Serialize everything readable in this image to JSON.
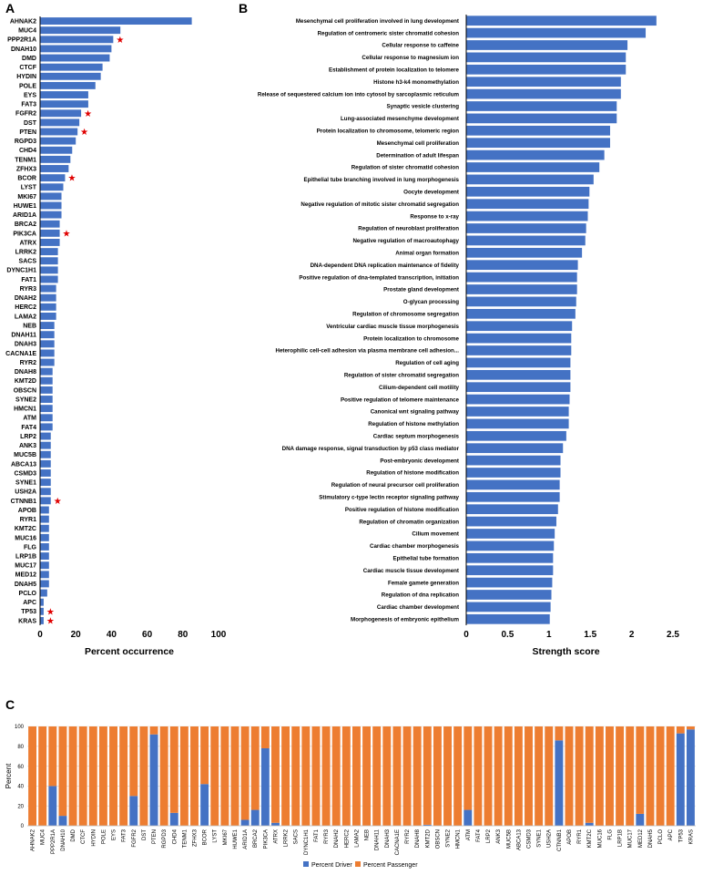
{
  "colors": {
    "blue": "#4472C4",
    "orange": "#ED7D31",
    "star": "#E00000",
    "axis": "#000000",
    "grid": "#D9D9D9"
  },
  "chart_data": [
    {
      "panel": "A",
      "type": "bar",
      "orientation": "horizontal",
      "xlabel": "Percent occurrence",
      "xlim": [
        0,
        100
      ],
      "xticks": [
        0,
        20,
        40,
        60,
        80,
        100
      ],
      "categories": [
        "AHNAK2",
        "MUC4",
        "PPP2R1A",
        "DNAH10",
        "DMD",
        "CTCF",
        "HYDIN",
        "POLE",
        "EYS",
        "FAT3",
        "FGFR2",
        "DST",
        "PTEN",
        "RGPD3",
        "CHD4",
        "TENM1",
        "ZFHX3",
        "BCOR",
        "LYST",
        "MKI67",
        "HUWE1",
        "ARID1A",
        "BRCA2",
        "PIK3CA",
        "ATRX",
        "LRRK2",
        "SACS",
        "DYNC1H1",
        "FAT1",
        "RYR3",
        "DNAH2",
        "HERC2",
        "LAMA2",
        "NEB",
        "DNAH11",
        "DNAH3",
        "CACNA1E",
        "RYR2",
        "DNAH8",
        "KMT2D",
        "OBSCN",
        "SYNE2",
        "HMCN1",
        "ATM",
        "FAT4",
        "LRP2",
        "ANK3",
        "MUC5B",
        "ABCA13",
        "CSMD3",
        "SYNE1",
        "USH2A",
        "CTNNB1",
        "APOB",
        "RYR1",
        "KMT2C",
        "MUC16",
        "FLG",
        "LRP1B",
        "MUC17",
        "MED12",
        "DNAH5",
        "PCLO",
        "APC",
        "TP53",
        "KRAS"
      ],
      "values": [
        85,
        45,
        41,
        40,
        39,
        35,
        34,
        31,
        27,
        27,
        23,
        22,
        21,
        20,
        18,
        17,
        16,
        14,
        13,
        12,
        12,
        12,
        11,
        11,
        11,
        10,
        10,
        10,
        10,
        9,
        9,
        9,
        9,
        8,
        8,
        8,
        8,
        8,
        7,
        7,
        7,
        7,
        7,
        7,
        7,
        6,
        6,
        6,
        6,
        6,
        6,
        6,
        6,
        5,
        5,
        5,
        5,
        5,
        5,
        5,
        5,
        5,
        4,
        2,
        2,
        2
      ],
      "starred": [
        "PPP2R1A",
        "FGFR2",
        "PTEN",
        "BCOR",
        "PIK3CA",
        "CTNNB1",
        "TP53",
        "KRAS"
      ]
    },
    {
      "panel": "B",
      "type": "bar",
      "orientation": "horizontal",
      "xlabel": "Strength score",
      "xlim": [
        0,
        2.5
      ],
      "xticks": [
        "0",
        "0.5",
        "1",
        "1.5",
        "2",
        "2.5"
      ],
      "categories": [
        "Mesenchymal cell proliferation involved in lung development",
        "Regulation of centromeric sister chromatid cohesion",
        "Cellular response to caffeine",
        "Cellular response to magnesium ion",
        "Establishment of protein localization to telomere",
        "Histone h3-k4 monomethylation",
        "Release of sequestered calcium ion into cytosol by sarcoplasmic reticulum",
        "Synaptic vesicle clustering",
        "Lung-associated mesenchyme development",
        "Protein localization to chromosome, telomeric region",
        "Mesenchymal cell proliferation",
        "Determination of adult lifespan",
        "Regulation of sister chromatid cohesion",
        "Epithelial tube branching involved in lung morphogenesis",
        "Oocyte development",
        "Negative regulation of mitotic sister chromatid segregation",
        "Response to x-ray",
        "Regulation of neuroblast proliferation",
        "Negative regulation of macroautophagy",
        "Animal organ formation",
        "DNA-dependent DNA replication maintenance of fidelity",
        "Positive regulation of dna-templated transcription, initiation",
        "Prostate gland development",
        "O-glycan processing",
        "Regulation of chromosome segregation",
        "Ventricular cardiac muscle tissue morphogenesis",
        "Protein localization to chromosome",
        "Heterophilic cell-cell adhesion via plasma membrane cell adhesion...",
        "Regulation of cell aging",
        "Regulation of sister chromatid segregation",
        "Cilium-dependent cell motility",
        "Positive regulation of telomere maintenance",
        "Canonical wnt signaling pathway",
        "Regulation of histone methylation",
        "Cardiac septum morphogenesis",
        "DNA damage response, signal transduction by p53 class mediator",
        "Post-embryonic development",
        "Regulation of histone modification",
        "Regulation of neural precursor cell proliferation",
        "Stimulatory c-type lectin receptor signaling pathway",
        "Positive regulation of histone modification",
        "Regulation of chromatin organization",
        "Cilium movement",
        "Cardiac chamber morphogenesis",
        "Epithelial tube formation",
        "Cardiac muscle tissue development",
        "Female gamete generation",
        "Regulation of dna replication",
        "Cardiac chamber development",
        "Morphogenesis of embryonic epithelium"
      ],
      "values": [
        2.3,
        2.17,
        1.95,
        1.93,
        1.93,
        1.87,
        1.87,
        1.82,
        1.82,
        1.74,
        1.74,
        1.67,
        1.61,
        1.54,
        1.49,
        1.48,
        1.47,
        1.45,
        1.44,
        1.4,
        1.35,
        1.34,
        1.34,
        1.33,
        1.32,
        1.28,
        1.27,
        1.27,
        1.26,
        1.26,
        1.26,
        1.25,
        1.24,
        1.24,
        1.21,
        1.17,
        1.14,
        1.14,
        1.13,
        1.13,
        1.11,
        1.09,
        1.07,
        1.06,
        1.05,
        1.05,
        1.04,
        1.03,
        1.02,
        1.01
      ]
    },
    {
      "panel": "C",
      "type": "bar",
      "stacked": true,
      "ylabel": "Percent",
      "ylim": [
        0,
        100
      ],
      "yticks": [
        0,
        20,
        40,
        60,
        80,
        100
      ],
      "categories": [
        "AHNAK2",
        "MUC4",
        "PPP2R1A",
        "DNAH10",
        "DMD",
        "CTCF",
        "HYDIN",
        "POLE",
        "EYS",
        "FAT3",
        "FGFR2",
        "DST",
        "PTEN",
        "RGPD3",
        "CHD4",
        "TENM1",
        "ZFHX3",
        "BCOR",
        "LYST",
        "MKI67",
        "HUWE1",
        "ARID1A",
        "BRCA2",
        "PIK3CA",
        "ATRX",
        "LRRK2",
        "SACS",
        "DYNC1H1",
        "FAT1",
        "RYR3",
        "DNAH2",
        "HERC2",
        "LAMA2",
        "NEB",
        "DNAH11",
        "DNAH3",
        "CACNA1E",
        "RYR2",
        "DNAH8",
        "KMT2D",
        "OBSCN",
        "SYNE2",
        "HMCN1",
        "ATM",
        "FAT4",
        "LRP2",
        "ANK3",
        "MUC5B",
        "ABCA13",
        "CSMD3",
        "SYNE1",
        "USH2A",
        "CTNNB1",
        "APOB",
        "RYR1",
        "KMT2C",
        "MUC16",
        "FLG",
        "LRP1B",
        "MUC17",
        "MED12",
        "DNAH5",
        "PCLO",
        "APC",
        "TP53",
        "KRAS"
      ],
      "series": [
        {
          "name": "Percent Driver",
          "values": [
            0,
            0,
            40,
            10,
            0,
            0,
            0,
            0,
            0,
            0,
            30,
            0,
            92,
            0,
            13,
            0,
            0,
            42,
            0,
            0,
            0,
            6,
            16,
            78,
            3,
            0,
            0,
            0,
            0,
            0,
            0,
            0,
            0,
            0,
            0,
            0,
            0,
            0,
            0,
            1,
            0,
            0,
            0,
            16,
            0,
            0,
            0,
            0,
            0,
            0,
            0,
            0,
            86,
            0,
            0,
            3,
            0,
            0,
            0,
            0,
            12,
            0,
            0,
            0,
            93,
            97
          ]
        },
        {
          "name": "Percent Passenger",
          "values": [
            100,
            100,
            60,
            90,
            100,
            100,
            100,
            100,
            100,
            100,
            70,
            100,
            8,
            100,
            87,
            100,
            100,
            58,
            100,
            100,
            100,
            94,
            84,
            22,
            97,
            100,
            100,
            100,
            100,
            100,
            100,
            100,
            100,
            100,
            100,
            100,
            100,
            100,
            100,
            99,
            100,
            100,
            100,
            84,
            100,
            100,
            100,
            100,
            100,
            100,
            100,
            100,
            14,
            100,
            100,
            97,
            100,
            100,
            100,
            100,
            88,
            100,
            100,
            100,
            7,
            3
          ]
        }
      ],
      "legend": [
        "Percent Driver",
        "Percent Passenger"
      ]
    }
  ],
  "panels": {
    "a": "A",
    "b": "B",
    "c": "C"
  }
}
